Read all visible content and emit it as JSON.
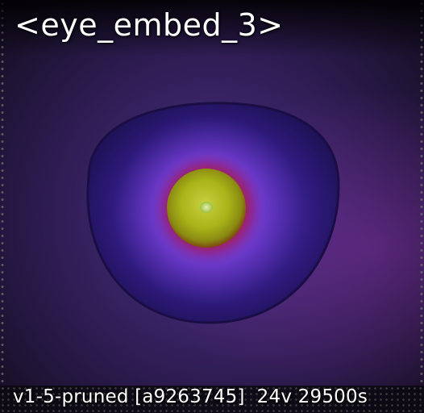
{
  "title": "<eye_embed_3>",
  "footer": {
    "model": "v1-5-pruned",
    "hash": "[a9263745]",
    "info": "24v 29500s"
  },
  "colors": {
    "background": "#3a2466",
    "eye_outer": "#2a1570",
    "iris_purple": "#7a3fd0",
    "iris_red": "#b0202a",
    "pupil_yellow": "#b8c21a",
    "highlight": "#d8e890"
  }
}
